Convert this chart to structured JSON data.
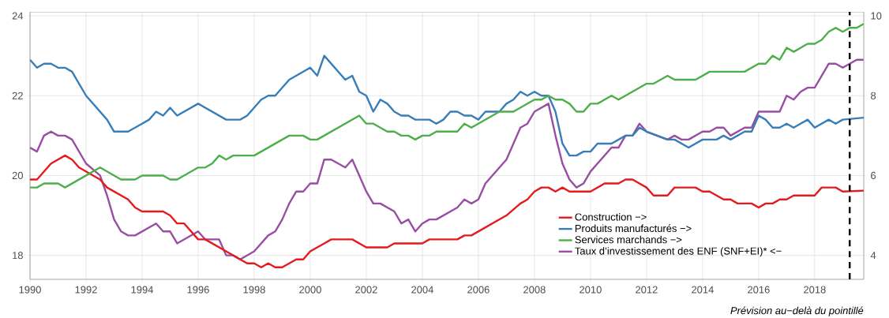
{
  "chart_data": {
    "type": "line",
    "xlim": [
      1990,
      2019.75
    ],
    "xticks": [
      1990,
      1992,
      1994,
      1996,
      1998,
      2000,
      2002,
      2004,
      2006,
      2008,
      2010,
      2012,
      2014,
      2016,
      2018
    ],
    "ylim": [
      17.4,
      24.1
    ],
    "yticks": [
      18,
      20,
      22,
      24
    ],
    "y2lim": [
      3.4,
      10.1
    ],
    "y2ticks": [
      4,
      6,
      8,
      10
    ],
    "grid": true,
    "legend": "bottom right",
    "ref_lines": [
      {
        "axis": "x",
        "value": 2019.25,
        "color": "#000000",
        "line_style": "dashed"
      }
    ],
    "annotations": [
      "Prévision au−delà du pointillé"
    ],
    "series": [
      {
        "name": "Construction −>",
        "color": "#e41a1c",
        "axis": "y2",
        "x": [
          1990,
          1990.25,
          1990.75,
          1991.25,
          1991.5,
          1991.75,
          1992.5,
          1992.75,
          1993.5,
          1993.75,
          1994,
          1994.75,
          1995,
          1995.25,
          1995.5,
          1996,
          1996.25,
          1997,
          1997.5,
          1997.75,
          1998,
          1998.25,
          1998.5,
          1998.75,
          1999,
          1999.5,
          1999.75,
          2000,
          2000.5,
          2000.75,
          2001.5,
          2002,
          2002.75,
          2003,
          2004,
          2004.25,
          2005.25,
          2005.5,
          2005.75,
          2007,
          2007.5,
          2007.75,
          2008,
          2008.25,
          2008.5,
          2008.75,
          2009,
          2009.25,
          2010,
          2010.5,
          2011,
          2011.25,
          2011.5,
          2012,
          2012.25,
          2012.75,
          2013,
          2013.75,
          2014,
          2014.25,
          2014.75,
          2015,
          2015.25,
          2015.75,
          2016,
          2016.25,
          2016.5,
          2016.75,
          2017,
          2017.25,
          2018,
          2018.25,
          2018.75,
          2019,
          2019.75
        ],
        "values": [
          5.9,
          5.9,
          6.3,
          6.5,
          6.4,
          6.2,
          5.9,
          5.7,
          5.4,
          5.2,
          5.1,
          5.1,
          5.0,
          4.8,
          4.8,
          4.4,
          4.4,
          4.1,
          3.9,
          3.8,
          3.8,
          3.7,
          3.8,
          3.7,
          3.7,
          3.9,
          3.9,
          4.1,
          4.3,
          4.4,
          4.4,
          4.2,
          4.2,
          4.3,
          4.3,
          4.4,
          4.4,
          4.5,
          4.5,
          5.0,
          5.3,
          5.4,
          5.6,
          5.7,
          5.7,
          5.6,
          5.7,
          5.6,
          5.6,
          5.8,
          5.8,
          5.9,
          5.9,
          5.7,
          5.5,
          5.5,
          5.7,
          5.7,
          5.6,
          5.6,
          5.4,
          5.4,
          5.3,
          5.3,
          5.2,
          5.3,
          5.3,
          5.4,
          5.4,
          5.5,
          5.5,
          5.7,
          5.7,
          5.6,
          5.62
        ]
      },
      {
        "name": "Produits manufacturés −>",
        "color": "#377eb8",
        "axis": "y2",
        "x": [
          1990,
          1990.25,
          1990.5,
          1990.75,
          1991,
          1991.25,
          1991.5,
          1992,
          1992.75,
          1993,
          1993.5,
          1994,
          1994.25,
          1994.5,
          1994.75,
          1995,
          1995.25,
          1996,
          1997,
          1997.5,
          1997.75,
          1998.25,
          1998.5,
          1998.75,
          1999.25,
          2000,
          2000.25,
          2000.5,
          2001.25,
          2001.5,
          2001.75,
          2002,
          2002.25,
          2002.5,
          2002.75,
          2003,
          2003.25,
          2003.5,
          2003.75,
          2004.25,
          2004.5,
          2004.75,
          2005,
          2005.25,
          2005.5,
          2005.75,
          2006,
          2006.25,
          2006.75,
          2007,
          2007.25,
          2007.5,
          2007.75,
          2008,
          2008.25,
          2008.5,
          2008.75,
          2009,
          2009.25,
          2009.5,
          2009.75,
          2010,
          2010.25,
          2010.75,
          2011.25,
          2011.5,
          2011.75,
          2012,
          2012.75,
          2013,
          2013.5,
          2014,
          2014.5,
          2014.75,
          2015,
          2015.5,
          2015.75,
          2016,
          2016.25,
          2016.5,
          2016.75,
          2017,
          2017.25,
          2017.75,
          2018,
          2018.5,
          2018.75,
          2019,
          2019.75
        ],
        "values": [
          8.9,
          8.7,
          8.8,
          8.8,
          8.7,
          8.7,
          8.6,
          8.0,
          7.4,
          7.1,
          7.1,
          7.3,
          7.4,
          7.6,
          7.5,
          7.7,
          7.5,
          7.8,
          7.4,
          7.4,
          7.5,
          7.9,
          8.0,
          8.0,
          8.4,
          8.7,
          8.5,
          9.0,
          8.4,
          8.5,
          8.1,
          8.0,
          7.6,
          7.9,
          7.8,
          7.6,
          7.5,
          7.5,
          7.4,
          7.4,
          7.3,
          7.4,
          7.6,
          7.6,
          7.5,
          7.5,
          7.4,
          7.6,
          7.6,
          7.8,
          7.9,
          8.1,
          8.0,
          8.1,
          8.0,
          8.0,
          7.6,
          6.8,
          6.5,
          6.5,
          6.6,
          6.6,
          6.8,
          6.8,
          7.0,
          7.0,
          7.2,
          7.1,
          6.9,
          6.9,
          6.7,
          6.9,
          6.9,
          7.0,
          6.9,
          7.1,
          7.1,
          7.5,
          7.4,
          7.2,
          7.2,
          7.3,
          7.2,
          7.4,
          7.2,
          7.4,
          7.3,
          7.4,
          7.45
        ]
      },
      {
        "name": "Services marchands −>",
        "color": "#4daf4a",
        "axis": "y2",
        "x": [
          1990,
          1990.25,
          1990.5,
          1991,
          1991.25,
          1992.5,
          1993.25,
          1993.75,
          1994,
          1994.75,
          1995,
          1995.25,
          1996,
          1996.25,
          1996.5,
          1996.75,
          1997,
          1997.25,
          1998,
          1999.25,
          1999.75,
          2000,
          2000.25,
          2001.75,
          2002,
          2002.25,
          2002.75,
          2003,
          2003.25,
          2003.5,
          2003.75,
          2004,
          2004.25,
          2004.5,
          2005.25,
          2005.5,
          2005.75,
          2006.75,
          2007.25,
          2008,
          2008.25,
          2008.5,
          2008.75,
          2009,
          2009.25,
          2009.5,
          2009.75,
          2010,
          2010.25,
          2010.75,
          2011,
          2012,
          2012.25,
          2012.75,
          2013,
          2013.75,
          2014.25,
          2015.5,
          2016,
          2016.25,
          2016.5,
          2016.75,
          2017,
          2017.25,
          2017.75,
          2018,
          2018.25,
          2018.5,
          2018.75,
          2019,
          2019.25,
          2019.5,
          2019.75
        ],
        "values": [
          5.7,
          5.7,
          5.8,
          5.8,
          5.7,
          6.2,
          5.9,
          5.9,
          6.0,
          6.0,
          5.9,
          5.9,
          6.2,
          6.2,
          6.3,
          6.5,
          6.4,
          6.5,
          6.5,
          7.0,
          7.0,
          6.9,
          6.9,
          7.5,
          7.3,
          7.3,
          7.1,
          7.1,
          7.0,
          7.0,
          6.9,
          7.0,
          7.0,
          7.1,
          7.1,
          7.3,
          7.2,
          7.6,
          7.6,
          7.9,
          7.9,
          8.0,
          7.9,
          7.9,
          7.8,
          7.6,
          7.6,
          7.8,
          7.8,
          8.0,
          7.9,
          8.3,
          8.3,
          8.5,
          8.4,
          8.4,
          8.6,
          8.6,
          8.8,
          8.8,
          9.0,
          8.9,
          9.2,
          9.1,
          9.3,
          9.3,
          9.4,
          9.6,
          9.7,
          9.6,
          9.7,
          9.7,
          9.8
        ]
      },
      {
        "name": "Taux d’investissement des ENF (SNF+EI)* <−",
        "color": "#984ea3",
        "axis": "y",
        "x": [
          1990,
          1990.25,
          1990.5,
          1990.75,
          1991,
          1991.25,
          1991.5,
          1992,
          1992.5,
          1992.75,
          1993,
          1993.25,
          1993.5,
          1993.75,
          1994.5,
          1994.75,
          1995,
          1995.25,
          1996,
          1996.25,
          1996.75,
          1997,
          1997.25,
          1997.5,
          1998,
          1998.5,
          1998.75,
          1999,
          1999.25,
          1999.5,
          1999.75,
          2000,
          2000.25,
          2000.5,
          2000.75,
          2001.25,
          2001.5,
          2002,
          2002.25,
          2002.5,
          2003,
          2003.25,
          2003.5,
          2003.75,
          2004,
          2004.25,
          2004.5,
          2005.25,
          2005.5,
          2005.75,
          2006,
          2006.25,
          2007,
          2007.25,
          2007.5,
          2007.75,
          2008,
          2008.5,
          2008.75,
          2009,
          2009.25,
          2009.5,
          2009.75,
          2010,
          2010.75,
          2011,
          2011.25,
          2011.5,
          2011.75,
          2012,
          2012.75,
          2013,
          2013.25,
          2013.5,
          2014,
          2014.25,
          2014.5,
          2014.75,
          2015,
          2015.5,
          2015.75,
          2016,
          2016.75,
          2017,
          2017.25,
          2017.5,
          2017.75,
          2018,
          2018.5,
          2018.75,
          2019,
          2019.5,
          2019.75
        ],
        "values": [
          20.7,
          20.6,
          21.0,
          21.1,
          21.0,
          21.0,
          20.9,
          20.3,
          20.0,
          19.5,
          18.9,
          18.6,
          18.5,
          18.5,
          18.8,
          18.6,
          18.6,
          18.3,
          18.6,
          18.4,
          18.4,
          18.0,
          18.0,
          17.9,
          18.1,
          18.5,
          18.6,
          18.9,
          19.3,
          19.6,
          19.6,
          19.8,
          19.8,
          20.4,
          20.4,
          20.2,
          20.4,
          19.6,
          19.3,
          19.3,
          19.1,
          18.8,
          18.9,
          18.6,
          18.8,
          18.9,
          18.9,
          19.2,
          19.4,
          19.3,
          19.4,
          19.8,
          20.4,
          20.8,
          21.2,
          21.3,
          21.6,
          21.8,
          21.0,
          20.3,
          19.9,
          19.7,
          19.8,
          20.1,
          20.7,
          20.7,
          21.0,
          21.0,
          21.3,
          21.1,
          20.9,
          21.0,
          20.9,
          20.9,
          21.1,
          21.1,
          21.2,
          21.2,
          21.0,
          21.2,
          21.2,
          21.6,
          21.6,
          22.0,
          21.9,
          22.1,
          22.2,
          22.2,
          22.8,
          22.8,
          22.7,
          22.9,
          22.9
        ]
      }
    ]
  }
}
